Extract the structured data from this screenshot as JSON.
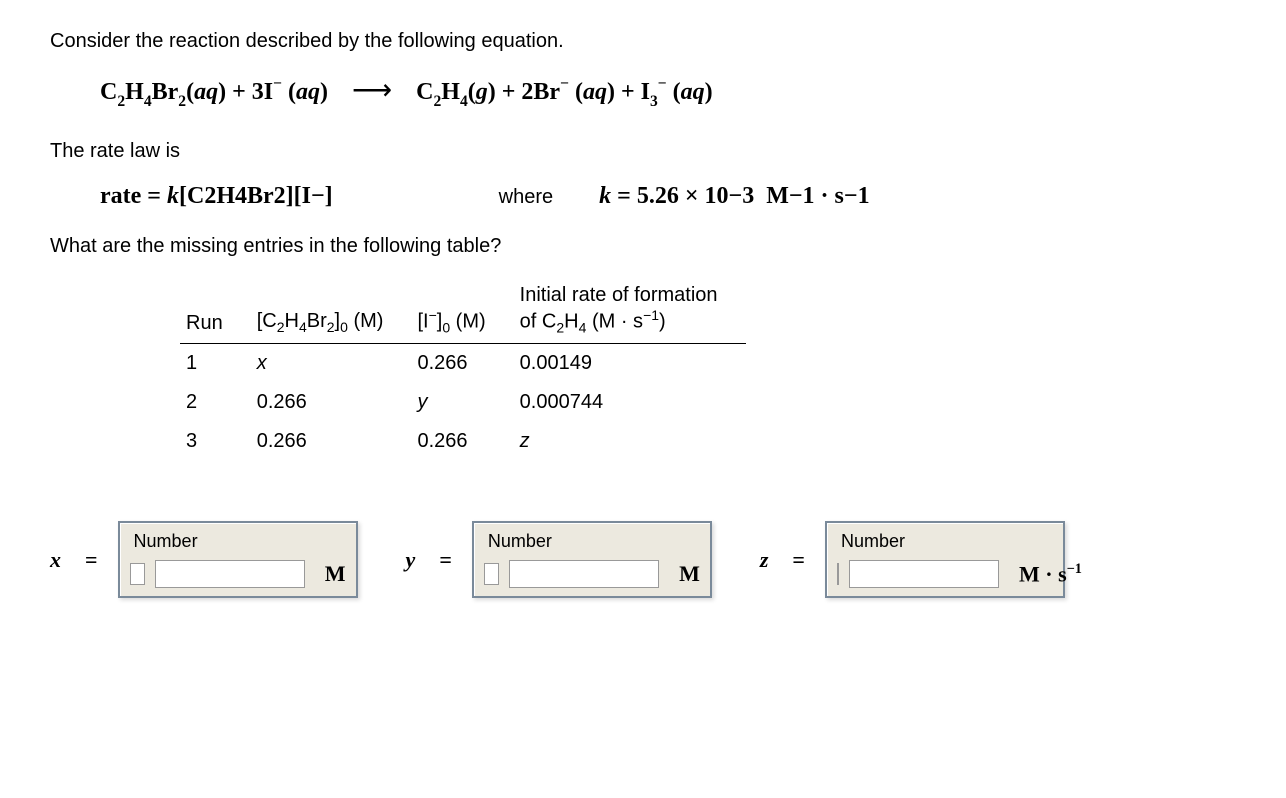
{
  "intro": "Consider the reaction described by the following equation.",
  "equation": {
    "lhs": "C₂H₄Br₂(aq) + 3I⁻ (aq)",
    "rhs": "C₂H₄(g) + 2Br⁻ (aq) + I₃⁻ (aq)"
  },
  "rate_law_intro": "The rate law is",
  "rate_law": {
    "expr": "rate = k[C₂H₄Br₂][I⁻]",
    "where_label": "where",
    "k_text": "k = 5.26 × 10⁻³  M⁻¹ · s⁻¹"
  },
  "table_prompt": "What are the missing entries in the following table?",
  "table": {
    "headers": {
      "run": "Run",
      "c1": "[C₂H₄Br₂]₀ (M)",
      "c2": "[I⁻]₀ (M)",
      "rate": "Initial rate of formation of C₂H₄ (M · s⁻¹)"
    },
    "rows": [
      {
        "run": "1",
        "c1": "x",
        "c2": "0.266",
        "rate": "0.00149"
      },
      {
        "run": "2",
        "c1": "0.266",
        "c2": "y",
        "rate": "0.000744"
      },
      {
        "run": "3",
        "c1": "0.266",
        "c2": "0.266",
        "rate": "z"
      }
    ]
  },
  "answers": {
    "box_label": "Number",
    "x": {
      "label": "x",
      "unit": "M"
    },
    "y": {
      "label": "y",
      "unit": "M"
    },
    "z": {
      "label": "z",
      "unit": "M · s⁻¹"
    }
  }
}
